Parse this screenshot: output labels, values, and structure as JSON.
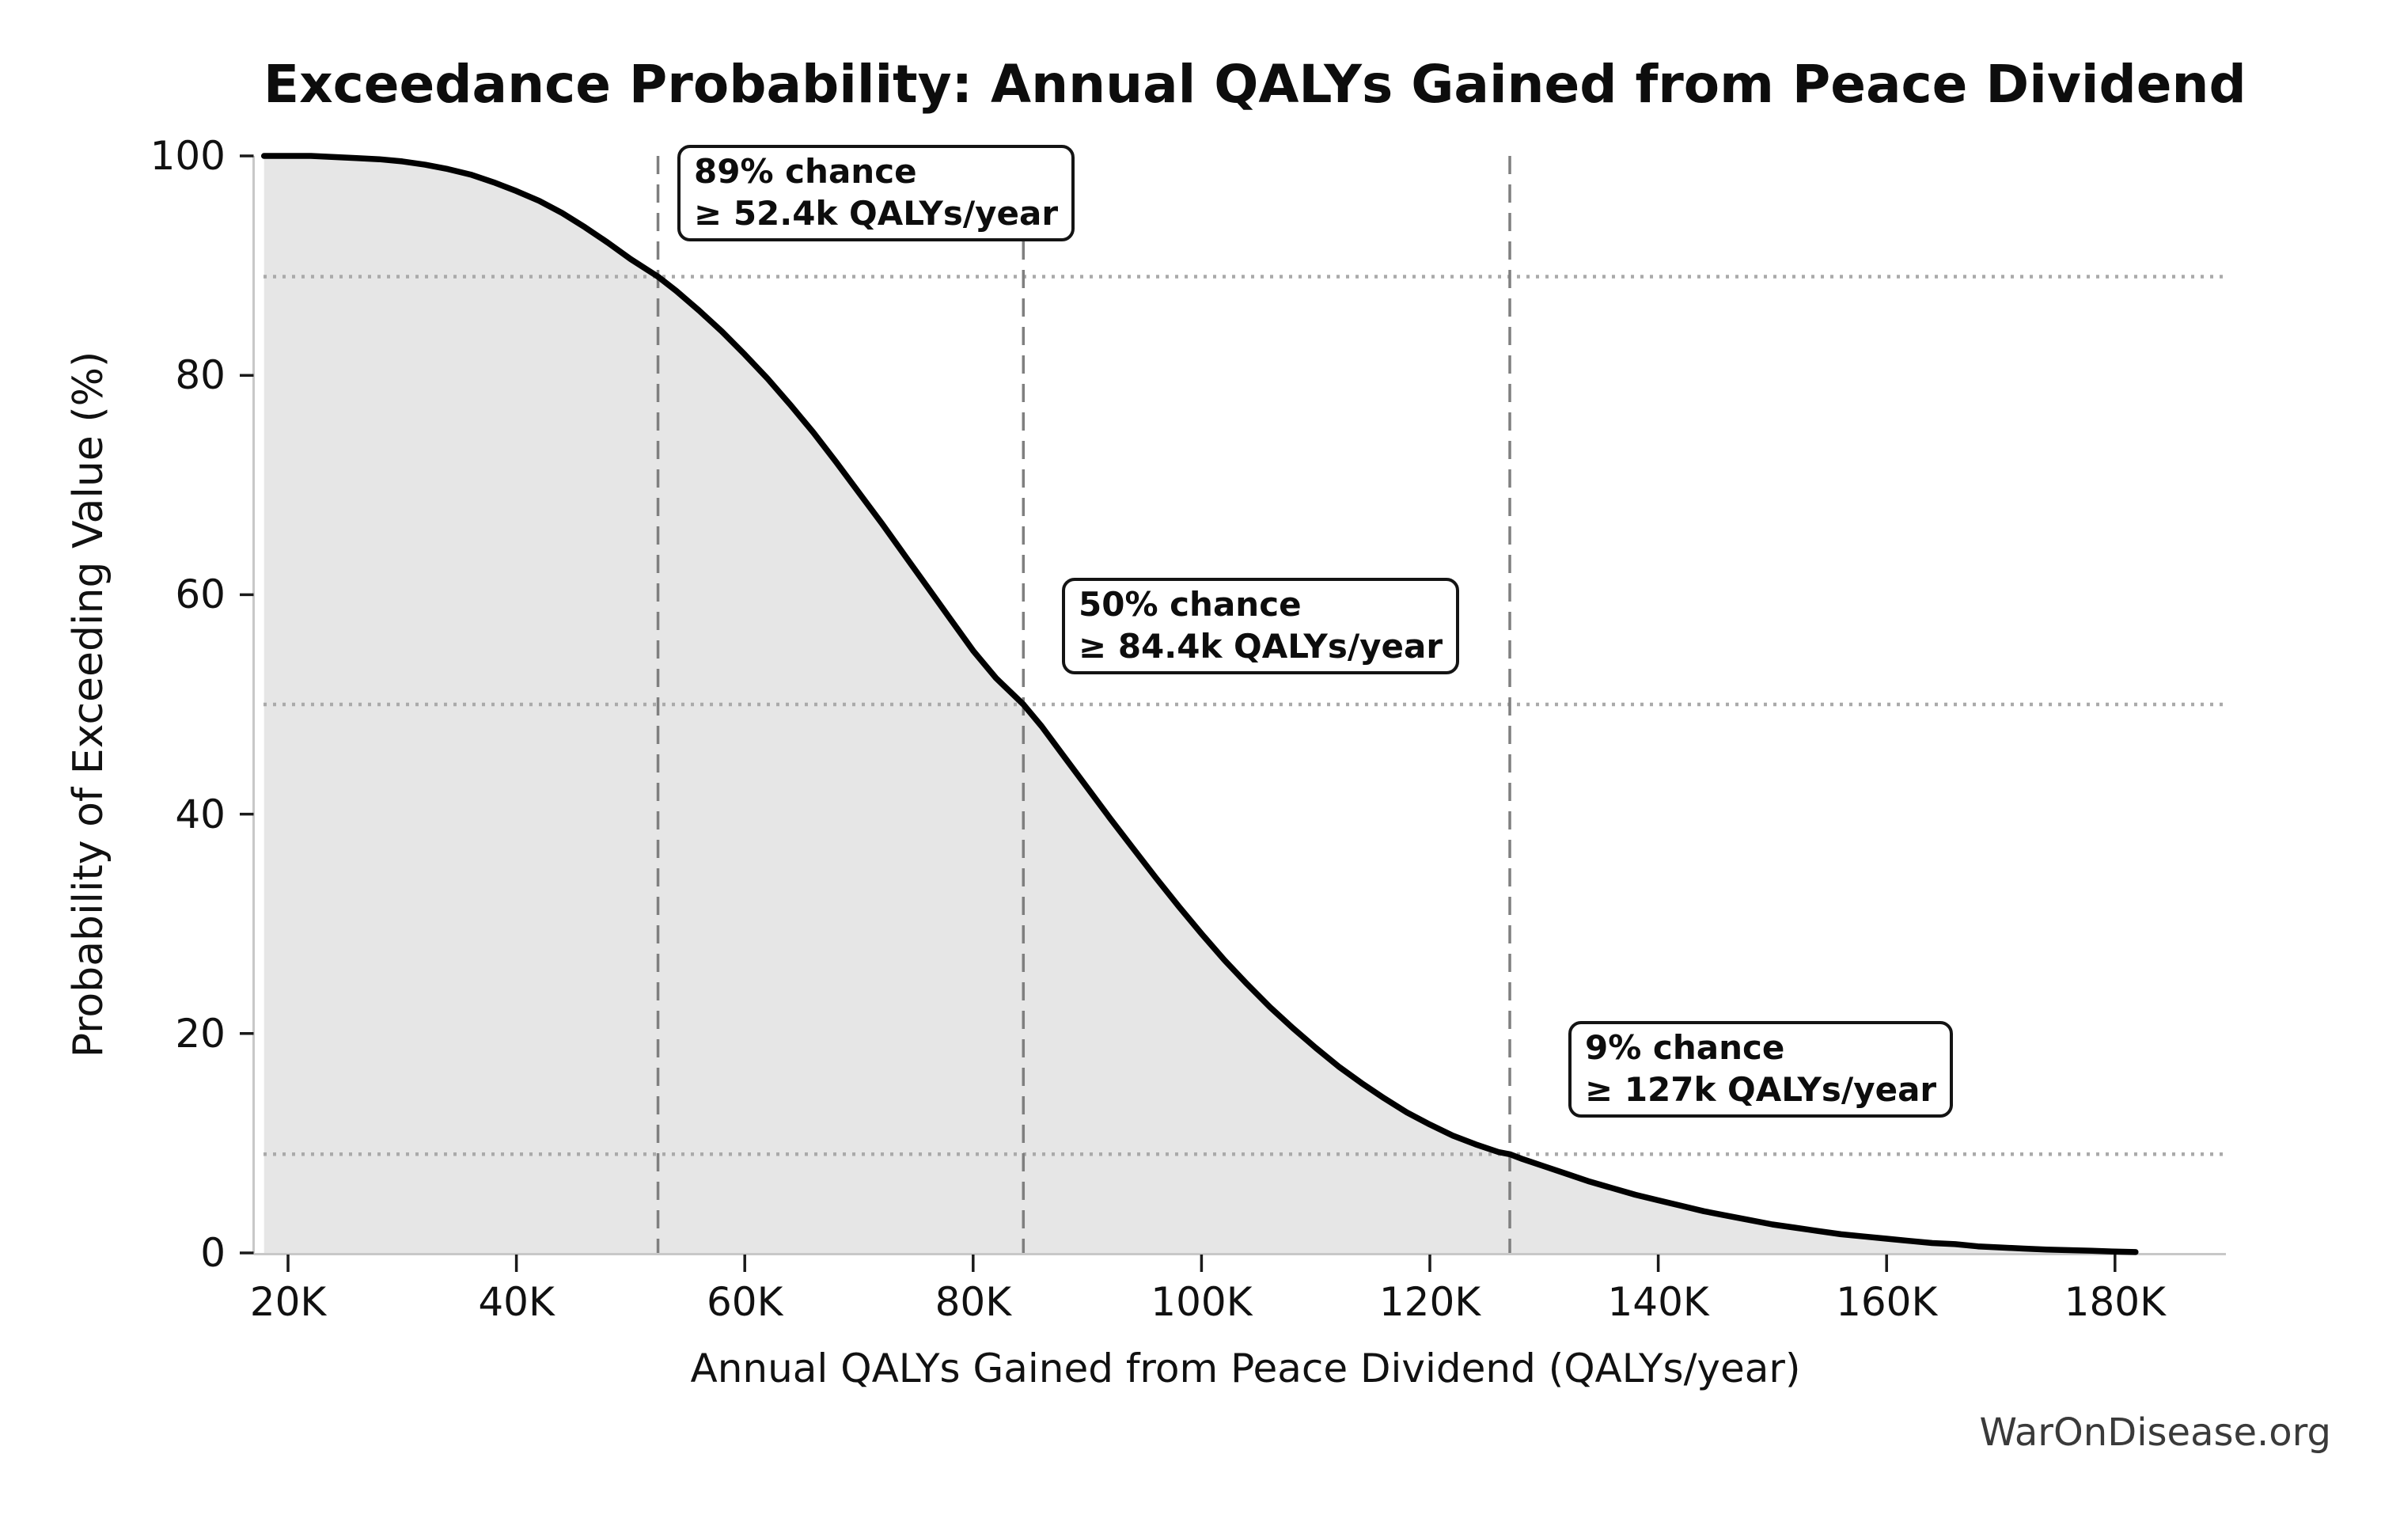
{
  "watermark": "WarOnDisease.org",
  "colors": {
    "background": "#ffffff",
    "curve": "#000000",
    "area_fill": "#e6e6e6",
    "dashed_threshold_line": "#7f7f7f",
    "dotted_gridline": "#aaaaaa",
    "axis_spine": "#c8c8c8",
    "tick_mark": "#1a1a1a",
    "annotation_border": "#141414",
    "watermark_text": "#3a3a3a"
  },
  "chart_data": {
    "type": "line",
    "subtype": "exceedance-probability-curve-with-area-fill",
    "title": "Exceedance Probability: Annual QALYs Gained from Peace Dividend",
    "xlabel": "Annual QALYs Gained from Peace Dividend (QALYs/year)",
    "ylabel": "Probability of Exceeding Value (%)",
    "x_unit": "thousands of QALYs per year (K)",
    "xlim_k": [
      17.6,
      189
    ],
    "ylim_pct": [
      0,
      100
    ],
    "grid": "dotted horizontal reference lines at 89%, 50%, 9% only",
    "legend": "none",
    "x_ticks": {
      "values_k": [
        20,
        40,
        60,
        80,
        100,
        120,
        140,
        160,
        180
      ],
      "labels": [
        "20K",
        "40K",
        "60K",
        "80K",
        "100K",
        "120K",
        "140K",
        "160K",
        "180K"
      ]
    },
    "y_ticks": {
      "values_pct": [
        0,
        20,
        40,
        60,
        80,
        100
      ],
      "labels": [
        "0",
        "20",
        "40",
        "60",
        "80",
        "100"
      ]
    },
    "markers": [
      {
        "probability_pct": 89,
        "value_k": 52.4,
        "label_line1": "89% chance",
        "label_line2": "≥ 52.4k QALYs/year"
      },
      {
        "probability_pct": 50,
        "value_k": 84.4,
        "label_line1": "50% chance",
        "label_line2": "≥ 84.4k QALYs/year"
      },
      {
        "probability_pct": 9,
        "value_k": 127,
        "label_line1": "9% chance",
        "label_line2": "≥ 127k QALYs/year"
      }
    ],
    "points_k_pct": [
      [
        17.9,
        100
      ],
      [
        20,
        100
      ],
      [
        22,
        100
      ],
      [
        24,
        99.9
      ],
      [
        26,
        99.8
      ],
      [
        28,
        99.7
      ],
      [
        30,
        99.5
      ],
      [
        32,
        99.2
      ],
      [
        34,
        98.8
      ],
      [
        36,
        98.3
      ],
      [
        38,
        97.6
      ],
      [
        40,
        96.8
      ],
      [
        42,
        95.9
      ],
      [
        44,
        94.8
      ],
      [
        46,
        93.5
      ],
      [
        48,
        92.1
      ],
      [
        50,
        90.6
      ],
      [
        52.4,
        89.0
      ],
      [
        54,
        87.7
      ],
      [
        56,
        85.9
      ],
      [
        58,
        84.0
      ],
      [
        60,
        81.9
      ],
      [
        62,
        79.7
      ],
      [
        64,
        77.3
      ],
      [
        66,
        74.8
      ],
      [
        68,
        72.1
      ],
      [
        70,
        69.3
      ],
      [
        72,
        66.5
      ],
      [
        74,
        63.6
      ],
      [
        76,
        60.7
      ],
      [
        78,
        57.8
      ],
      [
        80,
        54.9
      ],
      [
        82,
        52.4
      ],
      [
        84.4,
        50.0
      ],
      [
        86,
        48.0
      ],
      [
        88,
        45.2
      ],
      [
        90,
        42.4
      ],
      [
        92,
        39.6
      ],
      [
        94,
        36.9
      ],
      [
        96,
        34.2
      ],
      [
        98,
        31.6
      ],
      [
        100,
        29.1
      ],
      [
        102,
        26.7
      ],
      [
        104,
        24.5
      ],
      [
        106,
        22.4
      ],
      [
        108,
        20.5
      ],
      [
        110,
        18.7
      ],
      [
        112,
        17.0
      ],
      [
        114,
        15.5
      ],
      [
        116,
        14.1
      ],
      [
        118,
        12.8
      ],
      [
        120,
        11.7
      ],
      [
        122,
        10.7
      ],
      [
        124,
        9.9
      ],
      [
        126,
        9.2
      ],
      [
        127,
        9.0
      ],
      [
        128,
        8.6
      ],
      [
        130,
        7.9
      ],
      [
        132,
        7.2
      ],
      [
        134,
        6.5
      ],
      [
        136,
        5.9
      ],
      [
        138,
        5.3
      ],
      [
        140,
        4.8
      ],
      [
        142,
        4.3
      ],
      [
        144,
        3.8
      ],
      [
        146,
        3.4
      ],
      [
        148,
        3.0
      ],
      [
        150,
        2.6
      ],
      [
        152,
        2.3
      ],
      [
        154,
        2.0
      ],
      [
        156,
        1.7
      ],
      [
        158,
        1.5
      ],
      [
        160,
        1.3
      ],
      [
        162,
        1.1
      ],
      [
        164,
        0.9
      ],
      [
        166,
        0.8
      ],
      [
        168,
        0.6
      ],
      [
        170,
        0.5
      ],
      [
        172,
        0.4
      ],
      [
        174,
        0.3
      ],
      [
        176,
        0.25
      ],
      [
        178,
        0.2
      ],
      [
        180,
        0.12
      ],
      [
        181.8,
        0.08
      ]
    ]
  }
}
